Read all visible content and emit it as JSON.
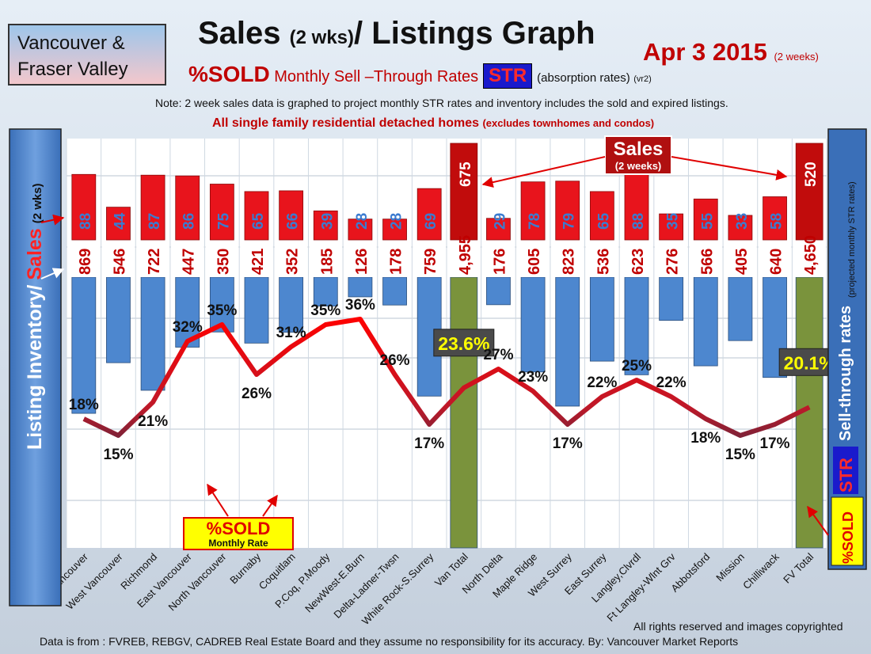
{
  "header": {
    "region_line1": "Vancouver &",
    "region_line2": "Fraser Valley",
    "title_main": "Sales ",
    "title_small": "(2 wks)",
    "title_rest": "/ Listings Graph",
    "date": "Apr 3 2015",
    "date_note": "(2 weeks)",
    "sub_sold": "%SOLD",
    "sub_monthly": " Monthly ",
    "sub_sell": "Sell –Through ",
    "sub_rates": "Rates",
    "sub_str": "STR",
    "sub_absorption": "(absorption rates)",
    "sub_vr": "(vr2)",
    "note": "Note: 2 week sales data is graphed to project monthly STR rates and inventory includes the sold and expired listings.",
    "note2": "All single family residential detached homes ",
    "note2_small": "(excludes townhomes and condos)"
  },
  "left_axis": {
    "title_part1": "Listing Inventory/",
    "title_part2": "Sales",
    "title_part3": "(2 wks)"
  },
  "right_axis": {
    "title": "Sell-through rates",
    "title_small": "(projected monthly STR rates)",
    "str_label": "STR",
    "sold_label": "%SOLD"
  },
  "callouts": {
    "sales": "Sales",
    "sales_sub": "(2 weeks)",
    "sold_rate": "%SOLD",
    "sold_rate_sub": "Monthly Rate"
  },
  "footer": {
    "copyright": "All rights reserved and  images copyrighted",
    "source": "Data is from : FVREB, REBGV, CADREB Real Estate Board and they assume no responsibility for its accuracy. By: Vancouver Market Reports"
  },
  "colors": {
    "sales_bar": "#e8141c",
    "total_sales_bar": "#c10c0c",
    "inventory_bar": "#4d87cf",
    "total_inventory_bar": "#7a933c",
    "sales_label": "#3b7bd0",
    "inventory_label": "#c00000",
    "str_line_high": "#ff0000",
    "str_line_low": "#2a3350"
  },
  "chart_data": {
    "type": "bar",
    "categories": [
      "Vancouver",
      "West Vancouver",
      "Richmond",
      "East Vancouver",
      "North Vancouver",
      "Burnaby",
      "Coquitlam",
      "P.Coq, P.Moody",
      "NewWest-E.Burn",
      "Delta-Ladner-Twsn",
      "White Rock-S.Surrey",
      "Van Total",
      "North Delta",
      "Maple Ridge",
      "West Surrey",
      "East Surrey",
      "Langley,Clvrdl",
      "Ft Langley-Wlnt Grv",
      "Abbotsford",
      "Mission",
      "Chilliwack",
      "FV Total"
    ],
    "series": [
      {
        "name": "Sales",
        "values": [
          88,
          44,
          87,
          86,
          75,
          65,
          66,
          39,
          28,
          28,
          69,
          675,
          29,
          78,
          79,
          65,
          88,
          35,
          55,
          33,
          58,
          520
        ],
        "labels": [
          "88",
          "44",
          "87",
          "86",
          "75",
          "65",
          "66",
          "39",
          "28",
          "28",
          "69",
          "675",
          "29",
          "78",
          "79",
          "65",
          "88",
          "35",
          "55",
          "33",
          "58",
          "520"
        ]
      },
      {
        "name": "Listing Inventory",
        "values": [
          869,
          546,
          722,
          447,
          350,
          421,
          352,
          185,
          126,
          178,
          759,
          4955,
          176,
          605,
          823,
          536,
          623,
          276,
          566,
          405,
          640,
          4650
        ],
        "labels": [
          "869",
          "546",
          "722",
          "447",
          "350",
          "421",
          "352",
          "185",
          "126",
          "178",
          "759",
          "4,955",
          "176",
          "605",
          "823",
          "536",
          "623",
          "276",
          "566",
          "405",
          "640",
          "4,650"
        ]
      },
      {
        "name": "%SOLD",
        "values": [
          18,
          15,
          21,
          32,
          35,
          26,
          31,
          35,
          36,
          26,
          17,
          23.6,
          27,
          23,
          17,
          22,
          25,
          22,
          18,
          15,
          17,
          20.1
        ],
        "labels": [
          "18%",
          "15%",
          "21%",
          "32%",
          "35%",
          "26%",
          "31%",
          "35%",
          "36%",
          "26%",
          "17%",
          "23.6%",
          "27%",
          "23%",
          "17%",
          "22%",
          "25%",
          "22%",
          "18%",
          "15%",
          "17%",
          "20.1%"
        ]
      }
    ],
    "totals": [
      "Van Total",
      "FV Total"
    ],
    "grid": true
  }
}
